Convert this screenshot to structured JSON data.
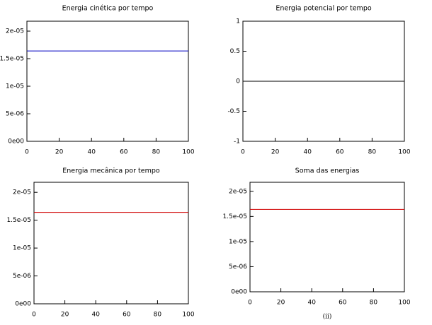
{
  "chart_data": [
    {
      "type": "line",
      "title": "Energia cinética por tempo",
      "x": [
        0,
        100
      ],
      "series": [
        {
          "color": "#0000c0",
          "values": [
            1.64e-05,
            1.64e-05
          ]
        }
      ],
      "xlim": [
        0,
        100
      ],
      "xticks": [
        0,
        20,
        40,
        60,
        80,
        100
      ],
      "ylim": [
        0,
        2.18e-05
      ],
      "yticks": [
        {
          "value": 0,
          "label": "0e00"
        },
        {
          "value": 5e-06,
          "label": "5e-06"
        },
        {
          "value": 1e-05,
          "label": "1e-05"
        },
        {
          "value": 1.5e-05,
          "label": "1.5e-05"
        },
        {
          "value": 2e-05,
          "label": "2e-05"
        }
      ]
    },
    {
      "type": "line",
      "title": "Energia potencial por tempo",
      "x": [
        0,
        100
      ],
      "series": [
        {
          "color": "#000000",
          "values": [
            0,
            0
          ]
        }
      ],
      "xlim": [
        0,
        100
      ],
      "xticks": [
        0,
        20,
        40,
        60,
        80,
        100
      ],
      "ylim": [
        -1,
        1
      ],
      "yticks": [
        -1,
        -0.5,
        0,
        0.5,
        1
      ]
    },
    {
      "type": "line",
      "title": "Energia mecânica por tempo",
      "x": [
        0,
        100
      ],
      "series": [
        {
          "color": "#d00000",
          "values": [
            1.64e-05,
            1.64e-05
          ]
        }
      ],
      "xlim": [
        0,
        100
      ],
      "xticks": [
        0,
        20,
        40,
        60,
        80,
        100
      ],
      "ylim": [
        0,
        2.18e-05
      ],
      "yticks": [
        {
          "value": 0,
          "label": "0e00"
        },
        {
          "value": 5e-06,
          "label": "5e-06"
        },
        {
          "value": 1e-05,
          "label": "1e-05"
        },
        {
          "value": 1.5e-05,
          "label": "1.5e-05"
        },
        {
          "value": 2e-05,
          "label": "2e-05"
        }
      ]
    },
    {
      "type": "line",
      "title": "Soma das energias",
      "x": [
        0,
        100
      ],
      "series": [
        {
          "color": "#d00000",
          "values": [
            1.64e-05,
            1.64e-05
          ]
        }
      ],
      "xlim": [
        0,
        100
      ],
      "xticks": [
        0,
        20,
        40,
        60,
        80,
        100
      ],
      "ylim": [
        0,
        2.18e-05
      ],
      "yticks": [
        {
          "value": 0,
          "label": "0e00"
        },
        {
          "value": 5e-06,
          "label": "5e-06"
        },
        {
          "value": 1e-05,
          "label": "1e-05"
        },
        {
          "value": 1.5e-05,
          "label": "1.5e-05"
        },
        {
          "value": 2e-05,
          "label": "2e-05"
        }
      ]
    }
  ],
  "caption": "(ii)"
}
